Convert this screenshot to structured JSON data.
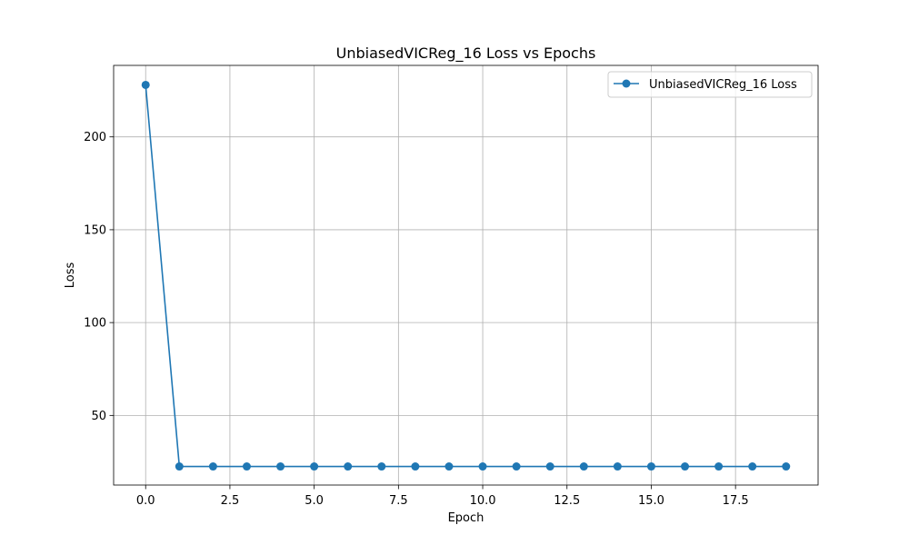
{
  "chart_data": {
    "type": "line",
    "title": "UnbiasedVICReg_16 Loss vs Epochs",
    "xlabel": "Epoch",
    "ylabel": "Loss",
    "xlim": [
      -0.95,
      19.95
    ],
    "ylim": [
      12.5,
      238.5
    ],
    "xticks": [
      0.0,
      2.5,
      5.0,
      7.5,
      10.0,
      12.5,
      15.0,
      17.5
    ],
    "xtick_labels": [
      "0.0",
      "2.5",
      "5.0",
      "7.5",
      "10.0",
      "12.5",
      "15.0",
      "17.5"
    ],
    "yticks": [
      50,
      100,
      150,
      200
    ],
    "ytick_labels": [
      "50",
      "100",
      "150",
      "200"
    ],
    "grid": true,
    "legend_position": "top-right",
    "series": [
      {
        "name": "UnbiasedVICReg_16 Loss",
        "color": "#1f77b4",
        "marker": "circle",
        "x": [
          0,
          1,
          2,
          3,
          4,
          5,
          6,
          7,
          8,
          9,
          10,
          11,
          12,
          13,
          14,
          15,
          16,
          17,
          18,
          19
        ],
        "y": [
          228.0,
          22.5,
          22.5,
          22.5,
          22.5,
          22.5,
          22.5,
          22.5,
          22.5,
          22.5,
          22.5,
          22.5,
          22.5,
          22.5,
          22.5,
          22.5,
          22.5,
          22.5,
          22.5,
          22.5
        ]
      }
    ]
  }
}
